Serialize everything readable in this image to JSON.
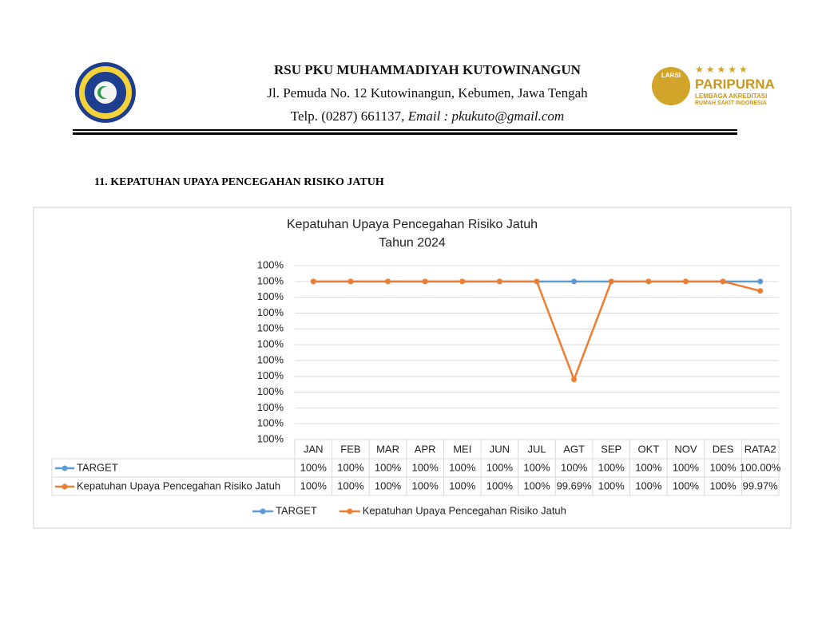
{
  "header": {
    "name": "RSU PKU MUHAMMADIYAH KUTOWINANGUN",
    "address": "Jl. Pemuda No. 12 Kutowinangun, Kebumen, Jawa Tengah",
    "phone": "Telp. (0287) 661137,",
    "email": "Email : pkukuto@gmail.com",
    "badge": {
      "small": "LARSI",
      "title": "PARIPURNA",
      "line1": "LEMBAGA AKREDITASI",
      "line2": "RUMAH SAKIT INDONESIA"
    }
  },
  "section_title": "11. KEPATUHAN UPAYA PENCEGAHAN RISIKO JATUH",
  "chart_data": {
    "type": "line",
    "title": "Kepatuhan Upaya Pencegahan Risiko Jatuh",
    "subtitle": "Tahun 2024",
    "categories": [
      "JAN",
      "FEB",
      "MAR",
      "APR",
      "MEI",
      "JUN",
      "JUL",
      "AGT",
      "SEP",
      "OKT",
      "NOV",
      "DES",
      "RATA2"
    ],
    "series": [
      {
        "name": "TARGET",
        "color": "#5b9bd5",
        "values": [
          100,
          100,
          100,
          100,
          100,
          100,
          100,
          100,
          100,
          100,
          100,
          100,
          100
        ],
        "value_labels": [
          "100%",
          "100%",
          "100%",
          "100%",
          "100%",
          "100%",
          "100%",
          "100%",
          "100%",
          "100%",
          "100%",
          "100%",
          "100.00%"
        ]
      },
      {
        "name": "Kepatuhan Upaya Pencegahan Risiko Jatuh",
        "color": "#ed7d31",
        "values": [
          100,
          100,
          100,
          100,
          100,
          100,
          100,
          99.69,
          100,
          100,
          100,
          100,
          99.97
        ],
        "value_labels": [
          "100%",
          "100%",
          "100%",
          "100%",
          "100%",
          "100%",
          "100%",
          "99.69%",
          "100%",
          "100%",
          "100%",
          "100%",
          "99.97%"
        ]
      }
    ],
    "ylim": [
      99.5,
      100.05
    ],
    "yticks": [
      {
        "value": 99.5,
        "label": "100%"
      },
      {
        "value": 99.55,
        "label": "100%"
      },
      {
        "value": 99.6,
        "label": "100%"
      },
      {
        "value": 99.65,
        "label": "100%"
      },
      {
        "value": 99.7,
        "label": "100%"
      },
      {
        "value": 99.75,
        "label": "100%"
      },
      {
        "value": 99.8,
        "label": "100%"
      },
      {
        "value": 99.85,
        "label": "100%"
      },
      {
        "value": 99.9,
        "label": "100%"
      },
      {
        "value": 99.95,
        "label": "100%"
      },
      {
        "value": 100,
        "label": "100%"
      },
      {
        "value": 100.05,
        "label": "100%"
      }
    ],
    "grid": true,
    "legend": "bottom"
  }
}
